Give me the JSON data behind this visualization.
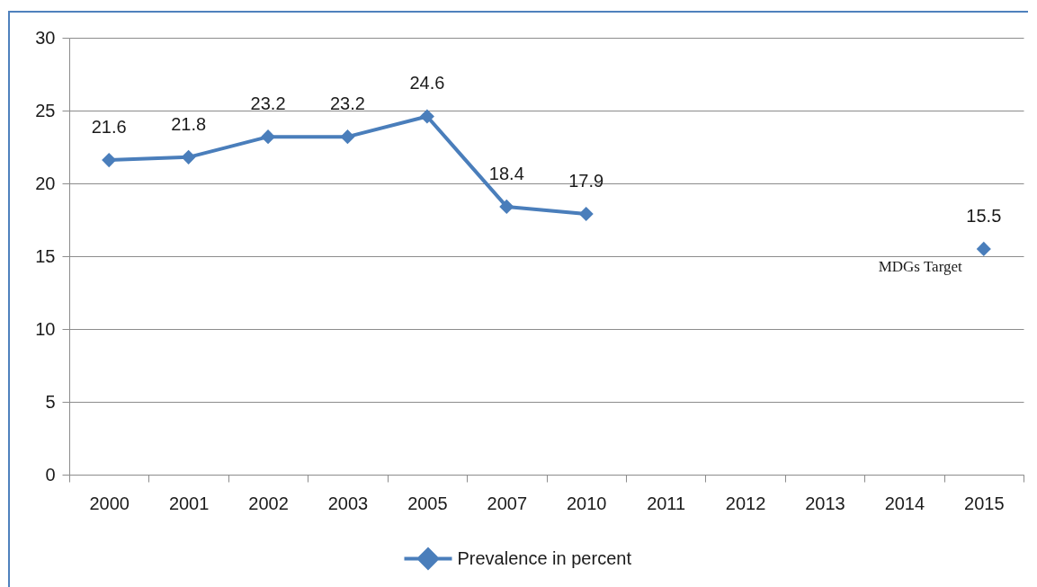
{
  "chart_data": {
    "type": "line",
    "categories": [
      "2000",
      "2001",
      "2002",
      "2003",
      "2005",
      "2007",
      "2010",
      "2011",
      "2012",
      "2013",
      "2014",
      "2015"
    ],
    "series": [
      {
        "name": "Prevalence in percent",
        "color": "#4a7ebb",
        "values": [
          21.6,
          21.8,
          23.2,
          23.2,
          24.6,
          18.4,
          17.9,
          null,
          null,
          null,
          null,
          15.5
        ]
      }
    ],
    "ylim": [
      0,
      30
    ],
    "yticks": [
      0,
      5,
      10,
      15,
      20,
      25,
      30
    ],
    "grid": "y",
    "legend": "bottom",
    "marker": "diamond",
    "line_style": "solid",
    "data_labels": true,
    "annotations": [
      {
        "text": "MDGs Target",
        "x": "2015",
        "y": 15.5
      }
    ]
  }
}
